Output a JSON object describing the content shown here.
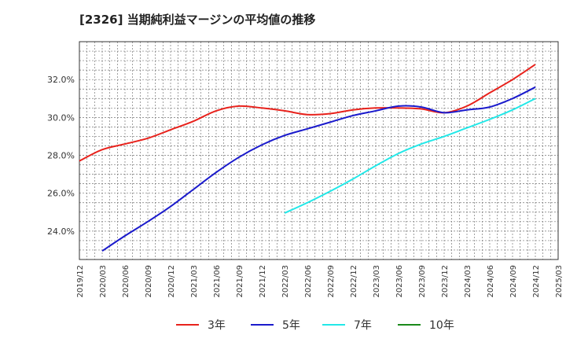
{
  "title": "[2326]  当期純利益マージンの平均値の推移",
  "chart_data": {
    "type": "line",
    "title": "[2326]  当期純利益マージンの平均値の推移",
    "xlabel": "",
    "ylabel": "",
    "ylim": [
      22.5,
      34.0
    ],
    "yticks": [
      24,
      26,
      28,
      30,
      32
    ],
    "ytick_labels": [
      "24.0%",
      "26.0%",
      "28.0%",
      "30.0%",
      "32.0%"
    ],
    "x_range": [
      "2019/12",
      "2025/03"
    ],
    "xtick_labels": [
      "2019/12",
      "2020/03",
      "2020/06",
      "2020/09",
      "2020/12",
      "2021/03",
      "2021/06",
      "2021/09",
      "2021/12",
      "2022/03",
      "2022/06",
      "2022/09",
      "2022/12",
      "2023/03",
      "2023/06",
      "2023/09",
      "2023/12",
      "2024/03",
      "2024/06",
      "2024/09",
      "2024/12",
      "2025/03"
    ],
    "grid": true,
    "legend_position": "bottom",
    "series": [
      {
        "name": "3年",
        "color": "#e8221c",
        "points": [
          [
            "2019/12",
            27.7
          ],
          [
            "2020/03",
            28.3
          ],
          [
            "2020/06",
            28.6
          ],
          [
            "2020/09",
            28.9
          ],
          [
            "2020/12",
            29.35
          ],
          [
            "2021/03",
            29.8
          ],
          [
            "2021/06",
            30.35
          ],
          [
            "2021/09",
            30.6
          ],
          [
            "2021/12",
            30.5
          ],
          [
            "2022/03",
            30.35
          ],
          [
            "2022/06",
            30.15
          ],
          [
            "2022/09",
            30.2
          ],
          [
            "2022/12",
            30.4
          ],
          [
            "2023/03",
            30.5
          ],
          [
            "2023/06",
            30.5
          ],
          [
            "2023/09",
            30.45
          ],
          [
            "2023/12",
            30.25
          ],
          [
            "2024/03",
            30.6
          ],
          [
            "2024/06",
            31.3
          ],
          [
            "2024/09",
            32.0
          ],
          [
            "2024/12",
            32.8
          ]
        ]
      },
      {
        "name": "5年",
        "color": "#1a1acc",
        "points": [
          [
            "2020/03",
            22.95
          ],
          [
            "2020/06",
            23.75
          ],
          [
            "2020/09",
            24.5
          ],
          [
            "2020/12",
            25.3
          ],
          [
            "2021/03",
            26.2
          ],
          [
            "2021/06",
            27.1
          ],
          [
            "2021/09",
            27.9
          ],
          [
            "2021/12",
            28.55
          ],
          [
            "2022/03",
            29.05
          ],
          [
            "2022/06",
            29.4
          ],
          [
            "2022/09",
            29.75
          ],
          [
            "2022/12",
            30.1
          ],
          [
            "2023/03",
            30.35
          ],
          [
            "2023/06",
            30.6
          ],
          [
            "2023/09",
            30.55
          ],
          [
            "2023/12",
            30.25
          ],
          [
            "2024/03",
            30.4
          ],
          [
            "2024/06",
            30.55
          ],
          [
            "2024/09",
            31.0
          ],
          [
            "2024/12",
            31.6
          ]
        ]
      },
      {
        "name": "7年",
        "color": "#22e8e8",
        "points": [
          [
            "2022/03",
            24.95
          ],
          [
            "2022/06",
            25.5
          ],
          [
            "2022/09",
            26.1
          ],
          [
            "2022/12",
            26.75
          ],
          [
            "2023/03",
            27.45
          ],
          [
            "2023/06",
            28.1
          ],
          [
            "2023/09",
            28.6
          ],
          [
            "2023/12",
            29.0
          ],
          [
            "2024/03",
            29.45
          ],
          [
            "2024/06",
            29.9
          ],
          [
            "2024/09",
            30.4
          ],
          [
            "2024/12",
            31.0
          ]
        ]
      },
      {
        "name": "10年",
        "color": "#1a8a1a",
        "points": []
      }
    ]
  }
}
